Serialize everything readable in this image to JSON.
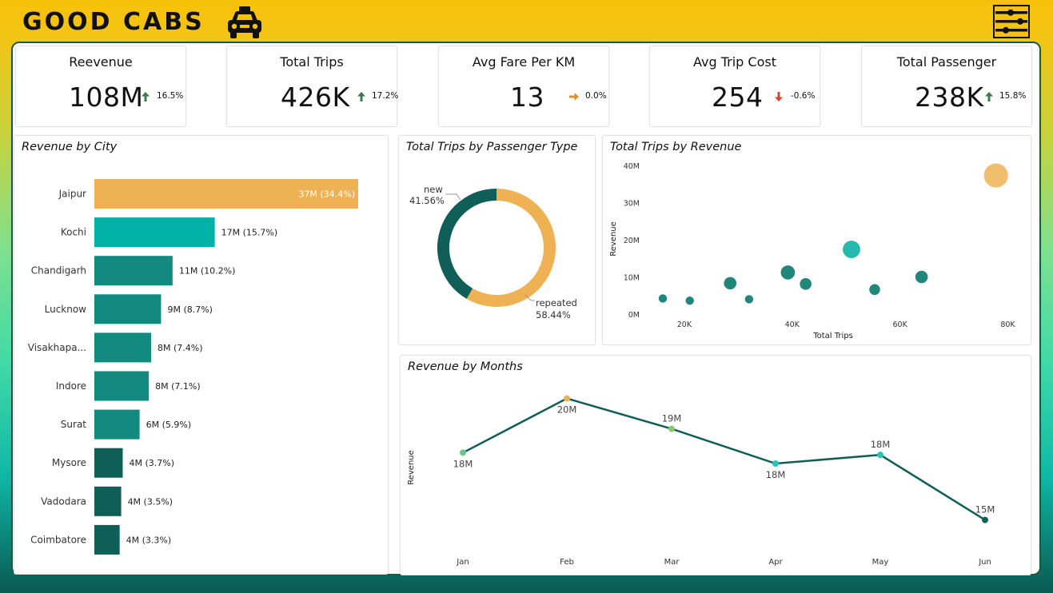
{
  "header": {
    "brand": "GOOD CABS",
    "logo_icon": "taxi-icon",
    "menu_icon": "slider-menu-icon"
  },
  "colors": {
    "accent_orange": "#EEB255",
    "accent_teal": "#01B2A8",
    "teal_mid": "#128A80",
    "teal_dark": "#0F5E58",
    "up": "#3E7A4C",
    "down": "#D64536",
    "flat": "#D89030"
  },
  "kpis": [
    {
      "title": "Reevenue",
      "value": "108M",
      "change": "16.5%",
      "trend": "up"
    },
    {
      "title": "Total Trips",
      "value": "426K",
      "change": "17.2%",
      "trend": "up"
    },
    {
      "title": "Avg Fare Per KM",
      "value": "13",
      "change": "0.0%",
      "trend": "flat"
    },
    {
      "title": "Avg Trip Cost",
      "value": "254",
      "change": "-0.6%",
      "trend": "down"
    },
    {
      "title": "Total Passenger",
      "value": "238K",
      "change": "15.8%",
      "trend": "up"
    }
  ],
  "revenue_by_city": {
    "title": "Revenue by City",
    "chart_data": {
      "type": "bar",
      "orientation": "horizontal",
      "categories": [
        "Jaipur",
        "Kochi",
        "Chandigarh",
        "Lucknow",
        "Visakhapa...",
        "Indore",
        "Surat",
        "Mysore",
        "Vadodara",
        "Coimbatore"
      ],
      "values": [
        37,
        17,
        11,
        9,
        8,
        8,
        6,
        4,
        4,
        4
      ],
      "labels": [
        "37M (34.4%)",
        "17M (15.7%)",
        "11M (10.2%)",
        "9M (8.7%)",
        "8M (7.4%)",
        "8M (7.1%)",
        "6M (5.9%)",
        "4M (3.7%)",
        "4M (3.5%)",
        "4M (3.3%)"
      ],
      "percents": [
        34.4,
        15.7,
        10.2,
        8.7,
        7.4,
        7.1,
        5.9,
        3.7,
        3.5,
        3.3
      ],
      "unit": "M"
    }
  },
  "trips_by_passenger_type": {
    "title": "Total Trips by Passenger Type",
    "chart_data": {
      "type": "pie",
      "style": "donut",
      "slices": [
        {
          "name": "new",
          "label": "41.56%",
          "value": 41.56
        },
        {
          "name": "repeated",
          "label": "58.44%",
          "value": 58.44
        }
      ]
    }
  },
  "trips_by_revenue": {
    "title": "Total Trips by Revenue",
    "chart_data": {
      "type": "scatter",
      "xlabel": "Total Trips",
      "ylabel": "Revenue",
      "x_ticks": [
        "20K",
        "40K",
        "60K",
        "80K"
      ],
      "x_tick_values": [
        20000,
        40000,
        60000,
        80000
      ],
      "y_ticks": [
        "0M",
        "10M",
        "20M",
        "30M",
        "40M"
      ],
      "y_tick_values": [
        0,
        10,
        20,
        30,
        40
      ],
      "xlim": [
        12000,
        82000
      ],
      "ylim": [
        0,
        40
      ],
      "points": [
        {
          "x": 16000,
          "y": 4.2,
          "size": 1
        },
        {
          "x": 21000,
          "y": 3.6,
          "size": 1
        },
        {
          "x": 28500,
          "y": 8.3,
          "size": 1.5
        },
        {
          "x": 32000,
          "y": 4.0,
          "size": 1
        },
        {
          "x": 39200,
          "y": 11.2,
          "size": 1.7
        },
        {
          "x": 42500,
          "y": 8.1,
          "size": 1.4
        },
        {
          "x": 51000,
          "y": 17.4,
          "size": 2.1
        },
        {
          "x": 55300,
          "y": 6.6,
          "size": 1.3
        },
        {
          "x": 64000,
          "y": 10.0,
          "size": 1.5
        },
        {
          "x": 77800,
          "y": 37.3,
          "size": 2.9
        }
      ]
    }
  },
  "revenue_by_months": {
    "title": "Revenue by Months",
    "chart_data": {
      "type": "line",
      "categories": [
        "Jan",
        "Feb",
        "Mar",
        "Apr",
        "May",
        "Jun"
      ],
      "values": [
        18.0,
        20.5,
        19.1,
        17.5,
        17.9,
        14.9
      ],
      "labels": [
        "18M",
        "20M",
        "19M",
        "18M",
        "18M",
        "15M"
      ],
      "label_pos": [
        "below",
        "below",
        "above",
        "below",
        "above",
        "above"
      ],
      "ylabel": "Revenue",
      "ylim": [
        14,
        21
      ]
    }
  }
}
